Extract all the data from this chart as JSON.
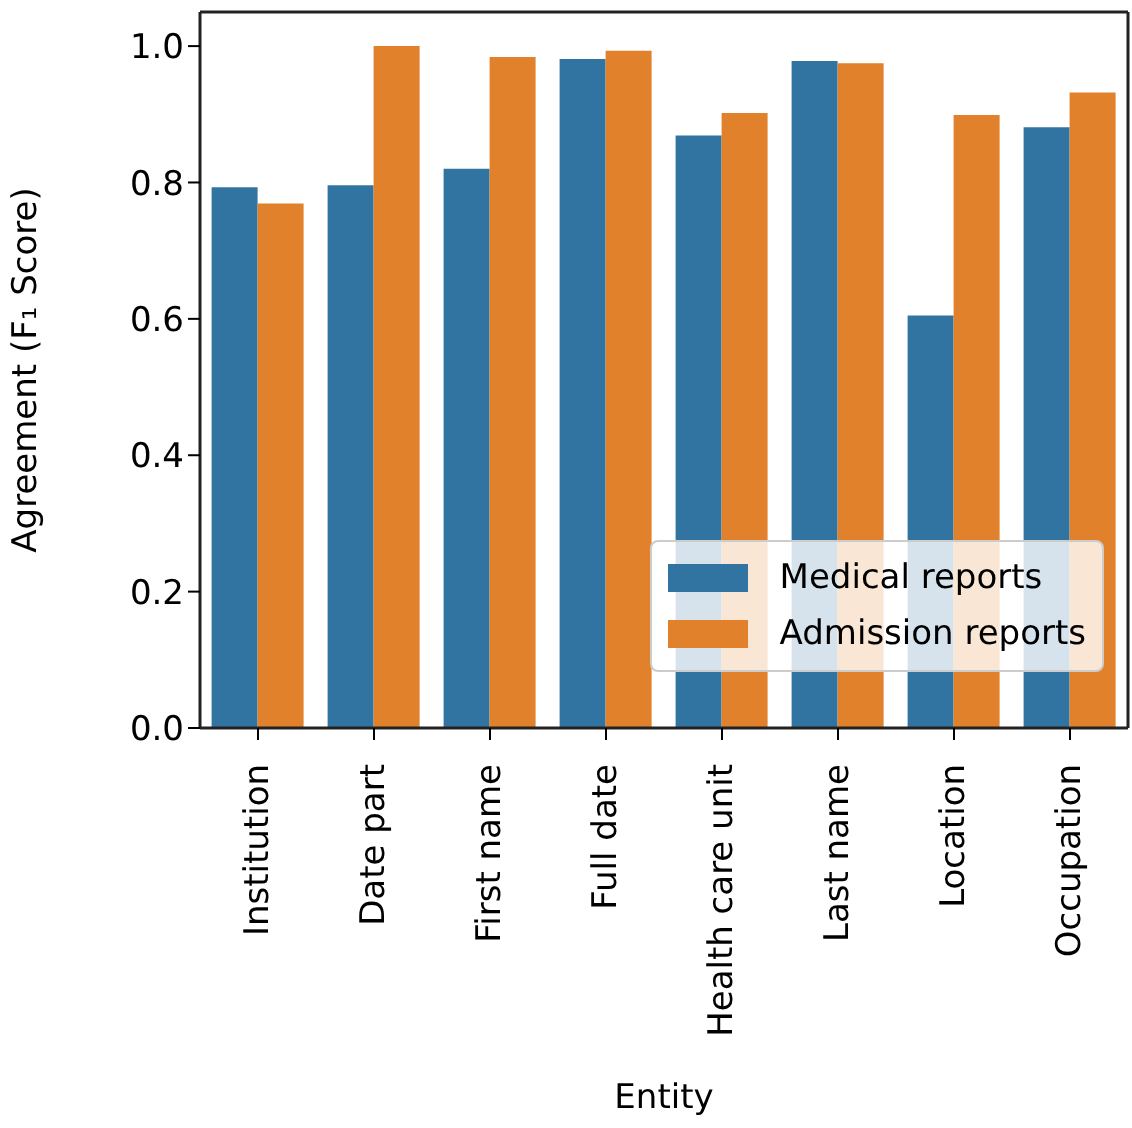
{
  "chart_data": {
    "type": "bar",
    "xlabel": "Entity",
    "ylabel": "Agreement (F₁ Score)",
    "categories": [
      "Institution",
      "Date part",
      "First name",
      "Full date",
      "Health care unit",
      "Last name",
      "Location",
      "Occupation"
    ],
    "series": [
      {
        "name": "Medical reports",
        "color": "#3274a1",
        "values": [
          0.793,
          0.796,
          0.82,
          0.981,
          0.869,
          0.978,
          0.605,
          0.881
        ]
      },
      {
        "name": "Admission reports",
        "color": "#e1812c",
        "values": [
          0.769,
          1.0,
          0.984,
          0.993,
          0.902,
          0.975,
          0.899,
          0.932
        ]
      }
    ],
    "ylim": [
      0,
      1.05
    ],
    "yticks": [
      {
        "value": 0,
        "label": "0.0"
      },
      {
        "value": 0.2,
        "label": "0.2"
      },
      {
        "value": 0.4,
        "label": "0.4"
      },
      {
        "value": 0.6,
        "label": "0.6"
      },
      {
        "value": 0.8,
        "label": "0.8"
      },
      {
        "value": 1,
        "label": "1.0"
      }
    ],
    "grid": false,
    "legend": "bottom right"
  }
}
